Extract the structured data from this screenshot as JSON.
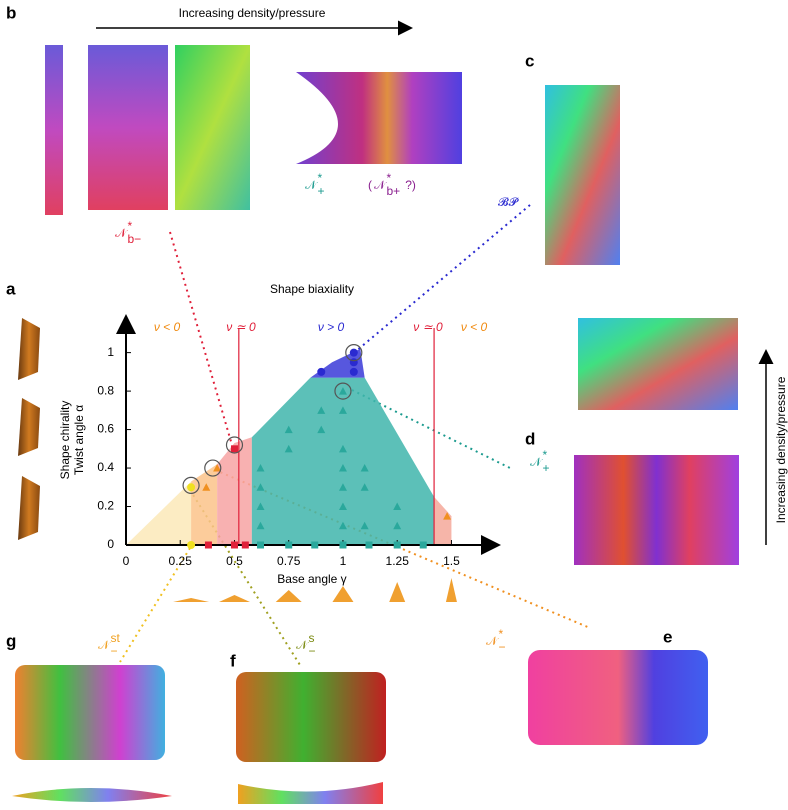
{
  "panels": [
    "a",
    "b",
    "c",
    "d",
    "e",
    "f",
    "g"
  ],
  "arrow_texts": [
    "Increasing density/pressure",
    "Increasing density/pressure"
  ],
  "phases": [
    {
      "prefix": "",
      "base": "𝒩",
      "sup": "*",
      "sub": "b−",
      "suffix": "",
      "color": "#e0203a"
    },
    {
      "prefix": "",
      "base": "𝒩",
      "sup": "*",
      "sub": "+",
      "suffix": "",
      "color": "#1a9a8e"
    },
    {
      "prefix": "(",
      "base": "𝒩",
      "sup": "*",
      "sub": "b+",
      "suffix": "?)",
      "color": "#8a1f8f"
    },
    {
      "prefix": "",
      "base": "𝓑𝓟",
      "sup": "",
      "sub": "",
      "suffix": "",
      "color": "#2a2ad0"
    },
    {
      "prefix": "",
      "base": "𝒩",
      "sup": "*",
      "sub": "+",
      "suffix": "",
      "color": "#1a9a8e"
    },
    {
      "prefix": "",
      "base": "𝒩",
      "sup": "st",
      "sub": "−",
      "suffix": "",
      "color": "#f0a020"
    },
    {
      "prefix": "",
      "base": "𝒩",
      "sup": "s",
      "sub": "−",
      "suffix": "",
      "color": "#7a8a10"
    },
    {
      "prefix": "",
      "base": "𝒩",
      "sup": "*",
      "sub": "−",
      "suffix": "",
      "color": "#f09020"
    }
  ],
  "chart_data": {
    "type": "scatter",
    "title": "Shape biaxiality",
    "x_label": "Base angle γ",
    "y_label": [
      "Shape chirality",
      "Twist angle α"
    ],
    "xlim": [
      0,
      1.71
    ],
    "ylim": [
      0,
      1.18
    ],
    "xticks": [
      0,
      0.25,
      {
        "value": 0.5,
        "label": "0.5"
      },
      0.75,
      1,
      1.25,
      {
        "value": 1.5,
        "label": "1.5"
      }
    ],
    "yticks": [
      0,
      0.2,
      0.4,
      0.6,
      0.8,
      1
    ],
    "annotations": [
      {
        "text": "ν < 0",
        "color": "#f08a10"
      },
      {
        "text": "ν ≃ 0",
        "color": "#e0203a"
      },
      {
        "text": "ν > 0",
        "color": "#2a2ad0"
      },
      {
        "text": "ν ≃ 0",
        "color": "#e0203a"
      },
      {
        "text": "ν < 0",
        "color": "#f08a10"
      }
    ],
    "vlines": [
      0.52,
      1.42
    ],
    "regions": [
      {
        "color": "#fbe9b8",
        "x": [
          0,
          0.3,
          0.3
        ],
        "values": [
          0,
          0.33,
          0
        ]
      },
      {
        "color": "#fbc38a",
        "x": [
          0.3,
          0.3,
          0.42,
          0.42
        ],
        "values": [
          0,
          0.33,
          0.42,
          0
        ]
      },
      {
        "color": "#f7a3a3",
        "x": [
          0.42,
          0.42,
          0.5,
          0.58,
          0.58
        ],
        "values": [
          0,
          0.42,
          0.53,
          0.56,
          0
        ]
      },
      {
        "color": "#3fb5ab",
        "x": [
          0.58,
          0.58,
          0.85,
          1.1,
          1.42,
          1.42
        ],
        "values": [
          0,
          0.56,
          0.87,
          0.87,
          0.25,
          0
        ]
      },
      {
        "color": "#3a3ad8",
        "x": [
          0.85,
          0.95,
          1.08,
          1.1
        ],
        "values": [
          0.87,
          0.95,
          1.02,
          0.87
        ]
      },
      {
        "color": "#f5a89a",
        "x": [
          1.42,
          1.42,
          1.5,
          1.5
        ],
        "values": [
          0,
          0.25,
          0.15,
          0
        ]
      }
    ],
    "series": [
      {
        "marker": "triangle",
        "color": "#2aa89c",
        "x": [
          0.62,
          0.62,
          0.62,
          0.62,
          0.75,
          0.75,
          0.9,
          0.9,
          1.0,
          1.0,
          1.0,
          1.0,
          1.0,
          1.0,
          1.1,
          1.1,
          1.1,
          1.25,
          1.25,
          1.0
        ],
        "values": [
          0.1,
          0.2,
          0.3,
          0.4,
          0.5,
          0.6,
          0.6,
          0.7,
          0.1,
          0.2,
          0.3,
          0.4,
          0.5,
          0.7,
          0.1,
          0.3,
          0.4,
          0.1,
          0.2,
          0.8
        ]
      },
      {
        "marker": "square",
        "color": "#2aa89c",
        "x": [
          0.62,
          0.75,
          0.87,
          1.0,
          1.12,
          1.25,
          1.37
        ],
        "values": [
          0,
          0,
          0,
          0,
          0,
          0,
          0
        ]
      },
      {
        "marker": "square",
        "color": "#e0203a",
        "x": [
          0.38,
          0.5,
          0.55,
          0.5
        ],
        "values": [
          0,
          0,
          0,
          0.5
        ]
      },
      {
        "marker": "circle",
        "color": "#2a2ad0",
        "x": [
          0.9,
          1.05,
          1.05,
          1.05
        ],
        "values": [
          0.9,
          0.9,
          0.95,
          1.0
        ]
      },
      {
        "marker": "triangle",
        "color": "#f09020",
        "x": [
          0.37,
          0.42,
          1.48
        ],
        "values": [
          0.3,
          0.4,
          0.15
        ]
      },
      {
        "marker": "circle",
        "color": "#f0e020",
        "x": [
          0.3,
          0.3
        ],
        "values": [
          0.3,
          0
        ]
      },
      {
        "marker": "ring",
        "color": "#555555",
        "x": [
          0.3,
          0.4,
          0.5,
          1.0,
          1.05
        ],
        "values": [
          0.31,
          0.4,
          0.52,
          0.8,
          1.0
        ]
      }
    ]
  }
}
